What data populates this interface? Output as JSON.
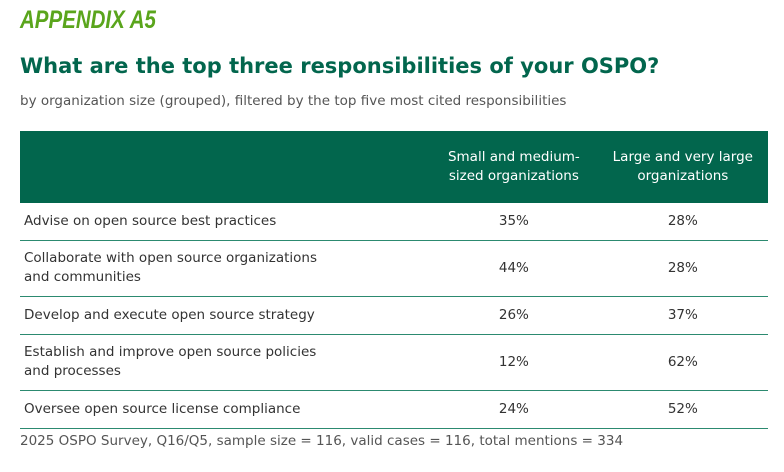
{
  "appendix": "APPENDIX A5",
  "title": "What are the top three responsibilities of your OSPO?",
  "subtitle": "by organization size (grouped), filtered by the top five most cited responsibilities",
  "columns": [
    "",
    "Small and medium-sized organizations",
    "Large and very large organizations"
  ],
  "rows": [
    {
      "label": "Advise on open source best practices",
      "small_medium": "35%",
      "large": "28%"
    },
    {
      "label": "Collaborate with open source organizations and communities",
      "small_medium": "44%",
      "large": "28%"
    },
    {
      "label": "Develop and execute open source strategy",
      "small_medium": "26%",
      "large": "37%"
    },
    {
      "label": "Establish and improve open source policies and processes",
      "small_medium": "12%",
      "large": "62%"
    },
    {
      "label": "Oversee open source license compliance",
      "small_medium": "24%",
      "large": "52%"
    }
  ],
  "footer": "2025 OSPO Survey, Q16/Q5, sample size = 116, valid cases = 116, total mentions = 334"
}
